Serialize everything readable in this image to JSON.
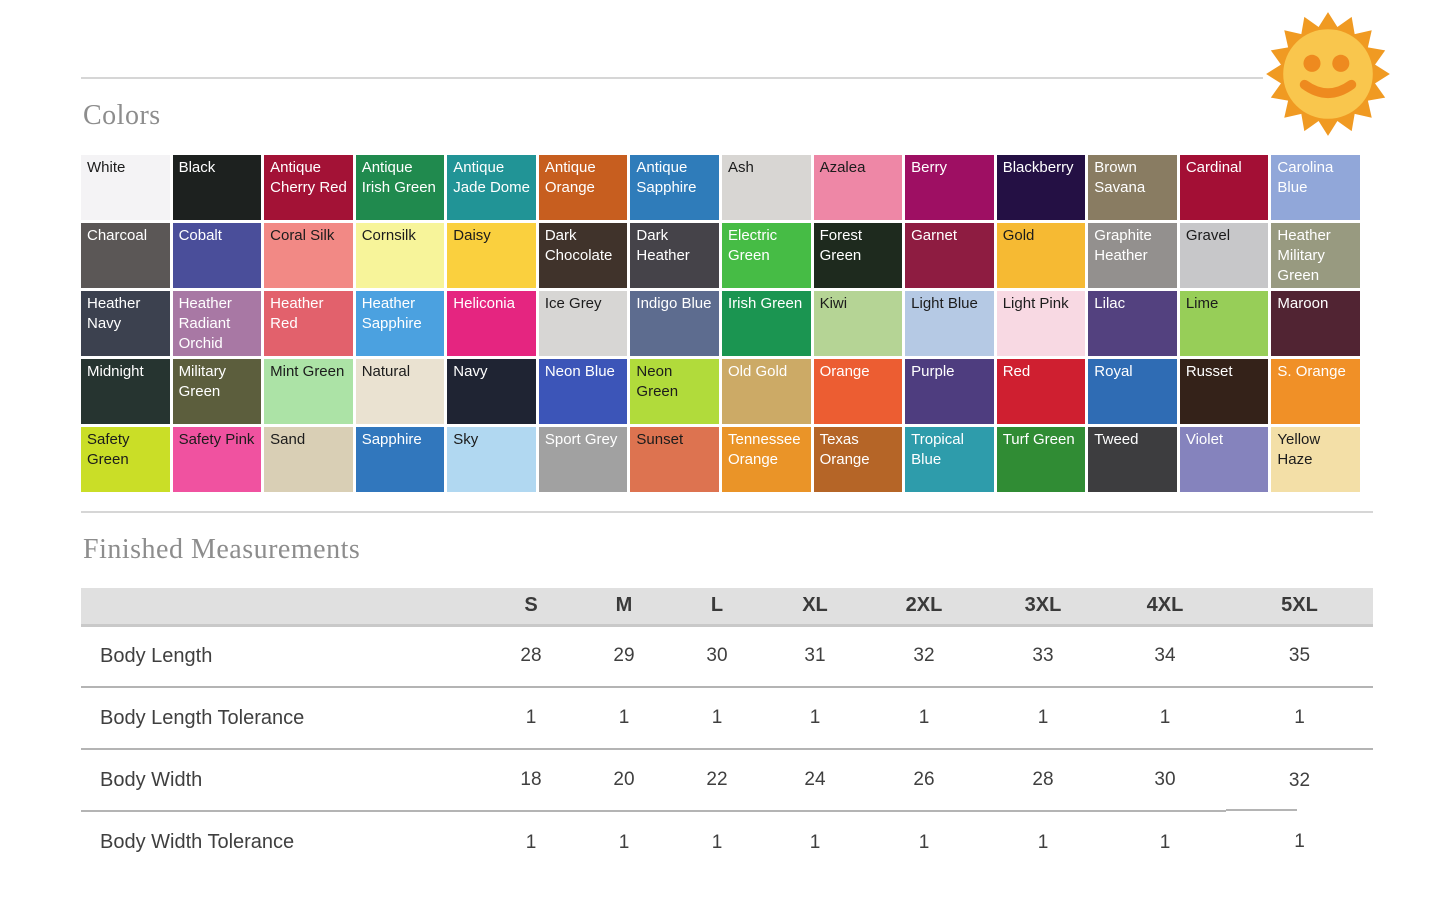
{
  "sections": {
    "colors": {
      "title": "Colors"
    },
    "measurements": {
      "title": "Finished Measurements"
    }
  },
  "icons": {
    "sun_icon": {
      "name": "smiling-sun",
      "ray_color": "#f09a22",
      "face_color": "#f9c64d",
      "feature_color": "#ee8a1f"
    }
  },
  "color_grid": {
    "columns": 14,
    "swatches": [
      {
        "name": "White",
        "bg": "#f4f3f5",
        "fg": "#1c1c1c"
      },
      {
        "name": "Black",
        "bg": "#1d211f",
        "fg": "#ffffff"
      },
      {
        "name": "Antique Cherry Red",
        "bg": "#a31236",
        "fg": "#ffffff"
      },
      {
        "name": "Antique Irish Green",
        "bg": "#208a4e",
        "fg": "#ffffff"
      },
      {
        "name": "Antique Jade Dome",
        "bg": "#219496",
        "fg": "#ffffff"
      },
      {
        "name": "Antique Orange",
        "bg": "#c75e1f",
        "fg": "#ffffff"
      },
      {
        "name": "Antique Sapphire",
        "bg": "#2f7cba",
        "fg": "#ffffff"
      },
      {
        "name": "Ash",
        "bg": "#d8d6d3",
        "fg": "#1c1c1c"
      },
      {
        "name": "Azalea",
        "bg": "#ee87a6",
        "fg": "#1c1c1c"
      },
      {
        "name": "Berry",
        "bg": "#9e0f63",
        "fg": "#ffffff"
      },
      {
        "name": "Blackberry",
        "bg": "#241044",
        "fg": "#ffffff"
      },
      {
        "name": "Brown Savana",
        "bg": "#897c62",
        "fg": "#ffffff"
      },
      {
        "name": "Cardinal",
        "bg": "#a30f35",
        "fg": "#ffffff"
      },
      {
        "name": "Carolina Blue",
        "bg": "#91a7d9",
        "fg": "#ffffff"
      },
      {
        "name": "Charcoal",
        "bg": "#5b5756",
        "fg": "#ffffff"
      },
      {
        "name": "Cobalt",
        "bg": "#4a4e9a",
        "fg": "#ffffff"
      },
      {
        "name": "Coral Silk",
        "bg": "#f28985",
        "fg": "#1c1c1c"
      },
      {
        "name": "Cornsilk",
        "bg": "#f7f49a",
        "fg": "#1c1c1c"
      },
      {
        "name": "Daisy",
        "bg": "#fad03e",
        "fg": "#1c1c1c"
      },
      {
        "name": "Dark Chocolate",
        "bg": "#40332b",
        "fg": "#ffffff"
      },
      {
        "name": "Dark Heather",
        "bg": "#454349",
        "fg": "#ffffff"
      },
      {
        "name": "Electric Green",
        "bg": "#46bc45",
        "fg": "#ffffff"
      },
      {
        "name": "Forest Green",
        "bg": "#1e2a1e",
        "fg": "#ffffff"
      },
      {
        "name": "Garnet",
        "bg": "#8e1c41",
        "fg": "#ffffff"
      },
      {
        "name": "Gold",
        "bg": "#f6ba33",
        "fg": "#1c1c1c"
      },
      {
        "name": "Graphite Heather",
        "bg": "#93908e",
        "fg": "#ffffff"
      },
      {
        "name": "Gravel",
        "bg": "#c7c7c9",
        "fg": "#1c1c1c"
      },
      {
        "name": "Heather Military Green",
        "bg": "#989a80",
        "fg": "#ffffff"
      },
      {
        "name": "Heather Navy",
        "bg": "#3c414f",
        "fg": "#ffffff"
      },
      {
        "name": "Heather Radiant Orchid",
        "bg": "#a878a4",
        "fg": "#ffffff"
      },
      {
        "name": "Heather Red",
        "bg": "#e2616c",
        "fg": "#ffffff"
      },
      {
        "name": "Heather Sapphire",
        "bg": "#4ba1e0",
        "fg": "#ffffff"
      },
      {
        "name": "Heliconia",
        "bg": "#e52580",
        "fg": "#ffffff"
      },
      {
        "name": "Ice Grey",
        "bg": "#d7d6d4",
        "fg": "#1c1c1c"
      },
      {
        "name": "Indigo Blue",
        "bg": "#5d6c8f",
        "fg": "#ffffff"
      },
      {
        "name": "Irish Green",
        "bg": "#1b9551",
        "fg": "#ffffff"
      },
      {
        "name": "Kiwi",
        "bg": "#b5d495",
        "fg": "#1c1c1c"
      },
      {
        "name": "Light Blue",
        "bg": "#b5c9e4",
        "fg": "#1c1c1c"
      },
      {
        "name": "Light Pink",
        "bg": "#f8d9e3",
        "fg": "#1c1c1c"
      },
      {
        "name": "Lilac",
        "bg": "#53417f",
        "fg": "#ffffff"
      },
      {
        "name": "Lime",
        "bg": "#97ce58",
        "fg": "#1c1c1c"
      },
      {
        "name": "Maroon",
        "bg": "#512433",
        "fg": "#ffffff"
      },
      {
        "name": "Midnight",
        "bg": "#263430",
        "fg": "#ffffff"
      },
      {
        "name": "Military Green",
        "bg": "#5c5e3d",
        "fg": "#ffffff"
      },
      {
        "name": "Mint Green",
        "bg": "#ace3a6",
        "fg": "#1c1c1c"
      },
      {
        "name": "Natural",
        "bg": "#eae2d1",
        "fg": "#1c1c1c"
      },
      {
        "name": "Navy",
        "bg": "#1f2433",
        "fg": "#ffffff"
      },
      {
        "name": "Neon Blue",
        "bg": "#3c55b8",
        "fg": "#ffffff"
      },
      {
        "name": "Neon Green",
        "bg": "#b1db3b",
        "fg": "#1c1c1c"
      },
      {
        "name": "Old Gold",
        "bg": "#ccaa66",
        "fg": "#ffffff"
      },
      {
        "name": "Orange",
        "bg": "#ec5d32",
        "fg": "#ffffff"
      },
      {
        "name": "Purple",
        "bg": "#4e3d7f",
        "fg": "#ffffff"
      },
      {
        "name": "Red",
        "bg": "#cf1f30",
        "fg": "#ffffff"
      },
      {
        "name": "Royal",
        "bg": "#2f6cb4",
        "fg": "#ffffff"
      },
      {
        "name": "Russet",
        "bg": "#342219",
        "fg": "#ffffff"
      },
      {
        "name": "S. Orange",
        "bg": "#f09027",
        "fg": "#ffffff"
      },
      {
        "name": "Safety Green",
        "bg": "#cade27",
        "fg": "#1c1c1c"
      },
      {
        "name": "Safety Pink",
        "bg": "#f052a0",
        "fg": "#1c1c1c"
      },
      {
        "name": "Sand",
        "bg": "#d9cfb5",
        "fg": "#1c1c1c"
      },
      {
        "name": "Sapphire",
        "bg": "#3177bd",
        "fg": "#ffffff"
      },
      {
        "name": "Sky",
        "bg": "#b1d8f1",
        "fg": "#1c1c1c"
      },
      {
        "name": "Sport Grey",
        "bg": "#a1a1a1",
        "fg": "#ffffff"
      },
      {
        "name": "Sunset",
        "bg": "#dd7350",
        "fg": "#1c1c1c"
      },
      {
        "name": "Tennessee Orange",
        "bg": "#ea9428",
        "fg": "#ffffff"
      },
      {
        "name": "Texas Orange",
        "bg": "#b56527",
        "fg": "#ffffff"
      },
      {
        "name": "Tropical Blue",
        "bg": "#2e9cab",
        "fg": "#ffffff"
      },
      {
        "name": "Turf Green",
        "bg": "#308c34",
        "fg": "#ffffff"
      },
      {
        "name": "Tweed",
        "bg": "#3d3d3f",
        "fg": "#ffffff"
      },
      {
        "name": "Violet",
        "bg": "#8583bd",
        "fg": "#ffffff"
      },
      {
        "name": "Yellow Haze",
        "bg": "#f3dfa7",
        "fg": "#1c1c1c"
      }
    ]
  },
  "measurements_table": {
    "sizes": [
      "S",
      "M",
      "L",
      "XL",
      "2XL",
      "3XL",
      "4XL",
      "5XL"
    ],
    "rows": [
      {
        "label": "Body Length",
        "values": [
          "28",
          "29",
          "30",
          "31",
          "32",
          "33",
          "34",
          "35"
        ]
      },
      {
        "label": "Body Length Tolerance",
        "values": [
          "1",
          "1",
          "1",
          "1",
          "1",
          "1",
          "1",
          "1"
        ]
      },
      {
        "label": "Body Width",
        "values": [
          "18",
          "20",
          "22",
          "24",
          "26",
          "28",
          "30",
          "32"
        ]
      },
      {
        "label": "Body Width Tolerance",
        "values": [
          "1",
          "1",
          "1",
          "1",
          "1",
          "1",
          "1",
          "1"
        ]
      }
    ]
  }
}
